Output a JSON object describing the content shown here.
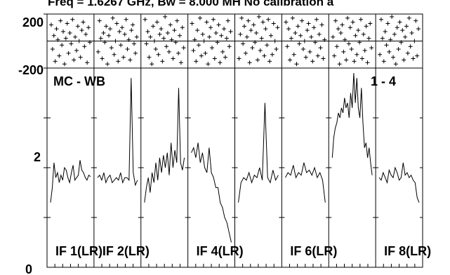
{
  "chart_data": {
    "type": "line",
    "title": "Freq = 1.6267 GHz, Bw = 8.000 MH  No calibration a",
    "plot_label_left": "MC - WB",
    "plot_label_right": "1 - 4",
    "phase_axis": {
      "ylim": [
        -200,
        200
      ],
      "tick_labels": [
        "200",
        "-200"
      ]
    },
    "amp_axis": {
      "ylim": [
        0,
        4
      ],
      "tick_labels": [
        "2",
        "0"
      ]
    },
    "grid": false,
    "panels": [
      {
        "label": "IF 1(LR)",
        "phase": [
          120,
          -60,
          40,
          -150,
          90,
          10,
          -110,
          150,
          -30,
          70,
          -170,
          20,
          130,
          -90,
          60,
          -20,
          160,
          -140,
          30,
          -70,
          110,
          0,
          -120,
          80,
          140,
          -40,
          50,
          -160,
          100,
          -10
        ],
        "amp": [
          1.3,
          1.6,
          2.1,
          1.8,
          1.9,
          1.7,
          1.85,
          1.75,
          2.0,
          1.95,
          1.8,
          1.7,
          1.9,
          2.05,
          1.75,
          1.8,
          1.85,
          2.15,
          1.95,
          1.9,
          1.8,
          1.75,
          1.85,
          1.82
        ]
      },
      {
        "label": "IF 2(LR)",
        "phase": [
          -80,
          150,
          20,
          -130,
          60,
          -10,
          110,
          -170,
          40,
          90,
          -50,
          170,
          -100,
          0,
          130,
          -150,
          70,
          -30,
          100,
          -120,
          50,
          160,
          -60,
          10,
          -140,
          80,
          120,
          -20,
          -90,
          30
        ],
        "amp": [
          1.8,
          1.85,
          1.75,
          1.9,
          1.7,
          1.8,
          1.85,
          1.7,
          1.75,
          1.8,
          1.75,
          1.9,
          1.7,
          1.8,
          1.8,
          1.75,
          3.8,
          1.9,
          1.65,
          1.75
        ]
      },
      {
        "label": "",
        "phase": [
          160,
          -20,
          70,
          -120,
          30,
          -170,
          110,
          0,
          -60,
          140,
          -100,
          50,
          90,
          -150,
          20,
          180,
          -40,
          60,
          -80,
          120,
          10,
          -130,
          80,
          -10,
          150,
          -90,
          40,
          -160,
          100,
          -50
        ],
        "amp": [
          1.3,
          1.6,
          1.8,
          1.5,
          1.9,
          1.7,
          2.1,
          1.75,
          2.2,
          1.9,
          2.25,
          2.0,
          2.3,
          1.85,
          2.5,
          2.0,
          2.35,
          2.1,
          3.6,
          2.1,
          1.95,
          2.2
        ]
      },
      {
        "label": "IF 4(LR)",
        "phase": [
          130,
          -70,
          10,
          -150,
          80,
          -30,
          170,
          -110,
          50,
          0,
          -90,
          140,
          -170,
          30,
          100,
          -50,
          160,
          -130,
          60,
          -10,
          120,
          -160,
          40,
          -80,
          90,
          -120,
          20,
          150,
          -40,
          70
        ],
        "amp": [
          2.3,
          2.4,
          2.2,
          2.5,
          2.1,
          2.3,
          2.0,
          1.9,
          2.4,
          1.9,
          1.8,
          1.6,
          1.6,
          1.3,
          1.2,
          1.0,
          0.9,
          0.7,
          0.5
        ]
      },
      {
        "label": "",
        "phase": [
          -130,
          50,
          170,
          -20,
          110,
          -90,
          30,
          150,
          -160,
          80,
          -50,
          120,
          -10,
          60,
          -140,
          180,
          -70,
          20,
          140,
          -110,
          90,
          -30,
          160,
          -150,
          40,
          -100,
          130,
          0,
          -60,
          100
        ],
        "amp": [
          1.3,
          1.7,
          1.8,
          1.75,
          1.9,
          1.7,
          1.85,
          1.8,
          2.0,
          1.75,
          3.3,
          1.8,
          1.7,
          1.95,
          1.75,
          1.85
        ]
      },
      {
        "label": "IF 6(LR)",
        "phase": [
          140,
          -40,
          90,
          -140,
          20,
          170,
          -100,
          60,
          -170,
          110,
          -20,
          40,
          150,
          -60,
          0,
          -120,
          80,
          130,
          -80,
          30,
          -150,
          100,
          -10,
          160,
          -110,
          50,
          -50,
          120,
          -130,
          10
        ],
        "amp": [
          1.8,
          1.9,
          1.85,
          2.05,
          1.8,
          1.9,
          1.85,
          2.1,
          1.9,
          1.95,
          1.85,
          2.0,
          1.8,
          1.9,
          1.75,
          1.3
        ]
      },
      {
        "label": "",
        "phase": [
          30,
          -110,
          150,
          -40,
          90,
          -170,
          60,
          120,
          -80,
          10,
          -140,
          170,
          -20,
          100,
          -60,
          140,
          -150,
          40,
          -100,
          80,
          -10,
          160,
          -130,
          50,
          -70,
          110,
          -160,
          20,
          130,
          -50
        ],
        "amp": [
          2.2,
          2.6,
          2.8,
          2.9,
          3.1,
          3.0,
          3.2,
          3.1,
          3.4,
          3.2,
          3.3,
          3.0,
          3.5,
          3.2,
          3.9,
          3.3,
          3.8,
          3.2,
          3.0,
          3.6,
          2.9,
          2.4,
          2.5,
          2.2,
          2.4,
          2.1,
          1.85
        ]
      },
      {
        "label": "IF 8(LR)",
        "phase": [
          -100,
          160,
          20,
          -150,
          70,
          -30,
          130,
          -80,
          10,
          180,
          -120,
          50,
          -170,
          100,
          -60,
          140,
          -10,
          80,
          -140,
          30,
          110,
          -90,
          170,
          -40,
          60,
          -130,
          0,
          150,
          -110,
          90
        ],
        "amp": [
          1.8,
          1.75,
          1.9,
          1.8,
          1.7,
          1.95,
          1.85,
          1.8,
          2.0,
          1.9,
          1.75,
          1.8,
          2.1,
          1.85,
          1.9,
          1.8,
          1.85,
          1.75,
          1.7,
          1.4,
          1.3
        ]
      }
    ]
  }
}
